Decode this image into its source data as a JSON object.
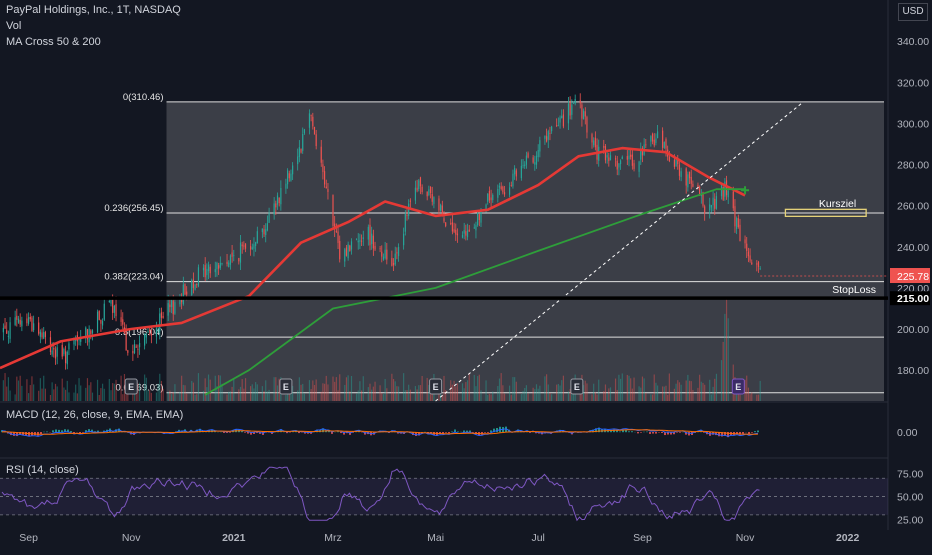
{
  "header": {
    "title": "PayPal Holdings, Inc., 1T, NASDAQ",
    "vol_label": "Vol",
    "ma_label": "MA Cross 50 & 200",
    "currency": "USD"
  },
  "macd_panel": {
    "label": "MACD (12, 26, close, 9, EMA, EMA)",
    "tick": "0.00"
  },
  "rsi_panel": {
    "label": "RSI (14, close)",
    "ticks": [
      "75.00",
      "50.00",
      "25.00"
    ]
  },
  "colors": {
    "background": "#131722",
    "up": "#26a69a",
    "down": "#ef5350",
    "ma50": "#e53935",
    "ma200": "#2e9e3a",
    "fib_zone": "#5d5f66",
    "rsi_line": "#7e57c2",
    "macd_line": "#2962ff",
    "signal_line": "#ff6d00",
    "target_box": "#e6d37a"
  },
  "chart_data": [
    {
      "type": "candlestick",
      "title": "PayPal Holdings, Inc., 1T, NASDAQ",
      "ylim": [
        165,
        360
      ],
      "y_ticks": [
        "340.00",
        "320.00",
        "300.00",
        "280.00",
        "260.00",
        "240.00",
        "220.00",
        "200.00",
        "180.00"
      ],
      "x_ticks": [
        "Sep",
        "Nov",
        "2021",
        "Mrz",
        "Mai",
        "Jul",
        "Sep",
        "Nov",
        "2022"
      ],
      "x_start": "2020-08-15",
      "x_end": "2022-01-25",
      "price_path": [
        [
          "2020-08-15",
          199
        ],
        [
          "2020-09-01",
          205
        ],
        [
          "2020-09-20",
          185
        ],
        [
          "2020-10-10",
          202
        ],
        [
          "2020-10-20",
          212
        ],
        [
          "2020-11-01",
          188
        ],
        [
          "2020-11-20",
          205
        ],
        [
          "2020-12-10",
          226
        ],
        [
          "2020-12-31",
          234
        ],
        [
          "2021-01-20",
          250
        ],
        [
          "2021-02-10",
          290
        ],
        [
          "2021-02-15",
          308
        ],
        [
          "2021-03-05",
          235
        ],
        [
          "2021-03-20",
          248
        ],
        [
          "2021-04-05",
          232
        ],
        [
          "2021-04-20",
          270
        ],
        [
          "2021-05-05",
          258
        ],
        [
          "2021-05-15",
          240
        ],
        [
          "2021-06-01",
          262
        ],
        [
          "2021-06-20",
          276
        ],
        [
          "2021-07-05",
          292
        ],
        [
          "2021-07-24",
          310
        ],
        [
          "2021-08-05",
          285
        ],
        [
          "2021-08-25",
          280
        ],
        [
          "2021-09-10",
          294
        ],
        [
          "2021-09-25",
          275
        ],
        [
          "2021-10-10",
          258
        ],
        [
          "2021-10-20",
          268
        ],
        [
          "2021-11-01",
          238
        ],
        [
          "2021-11-10",
          225
        ]
      ],
      "last_price": "225.78",
      "moving_averages": [
        {
          "name": "MA 50",
          "points": [
            [
              "2020-08-15",
              181
            ],
            [
              "2020-09-20",
              194
            ],
            [
              "2020-11-01",
              200
            ],
            [
              "2020-12-01",
              203
            ],
            [
              "2021-01-10",
              216
            ],
            [
              "2021-02-10",
              242
            ],
            [
              "2021-03-10",
              252
            ],
            [
              "2021-04-01",
              262
            ],
            [
              "2021-05-01",
              255
            ],
            [
              "2021-06-01",
              258
            ],
            [
              "2021-07-01",
              270
            ],
            [
              "2021-07-25",
              284
            ],
            [
              "2021-08-20",
              288
            ],
            [
              "2021-09-15",
              286
            ],
            [
              "2021-10-10",
              274
            ],
            [
              "2021-11-01",
              265
            ]
          ]
        },
        {
          "name": "MA 200",
          "points": [
            [
              "2020-12-15",
              168
            ],
            [
              "2021-01-10",
              180
            ],
            [
              "2021-03-01",
              210
            ],
            [
              "2021-05-01",
              220
            ],
            [
              "2021-07-01",
              238
            ],
            [
              "2021-09-01",
              256
            ],
            [
              "2021-10-15",
              268
            ],
            [
              "2021-11-01",
              268
            ]
          ]
        }
      ],
      "fibonacci": [
        {
          "label": "0(310.46)",
          "value": 310.46
        },
        {
          "label": "0.236(256.45)",
          "value": 256.45
        },
        {
          "label": "0.382(223.04)",
          "value": 223.04
        },
        {
          "label": "0.5(196.04)",
          "value": 196.04
        },
        {
          "label": "0.6...69.03)",
          "value": 169.03
        }
      ],
      "stop_loss": {
        "label": "StopLoss",
        "value": 215.0,
        "tag": "215.00"
      },
      "target": {
        "label": "Kursziel",
        "value": 256.5
      },
      "earnings_markers": [
        "2020-11-01",
        "2021-02-01",
        "2021-05-01",
        "2021-07-24",
        "2021-10-28"
      ],
      "earnings_label": "E",
      "volume": "daily volume bars, spike near 2021-10-20"
    },
    {
      "type": "line",
      "title": "MACD (12, 26, close, 9, EMA, EMA)",
      "series": [
        {
          "name": "MACD"
        },
        {
          "name": "Signal"
        },
        {
          "name": "Histogram"
        }
      ],
      "y_ticks": [
        "0.00"
      ]
    },
    {
      "type": "line",
      "title": "RSI (14, close)",
      "ylim": [
        20,
        90
      ],
      "y_ticks": [
        "75.00",
        "50.00",
        "25.00"
      ],
      "bands": [
        30,
        70
      ]
    }
  ]
}
